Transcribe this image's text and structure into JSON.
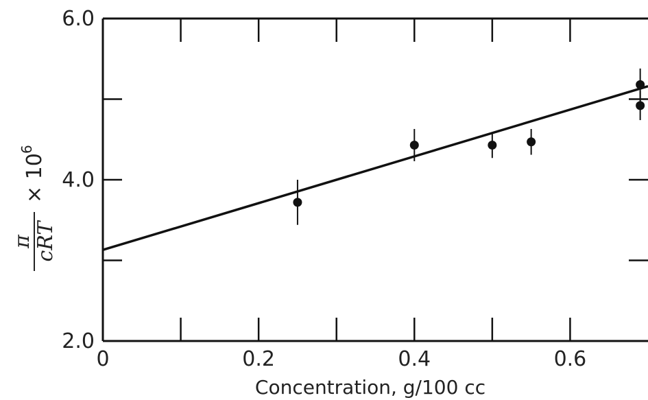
{
  "chart_data": {
    "type": "scatter",
    "xlabel": "Concentration, g/100 cc",
    "ylabel": {
      "numerator": "π",
      "denominator": "cRT",
      "times": "× 10",
      "exponent": "6"
    },
    "xlim": [
      0,
      0.7
    ],
    "ylim": [
      2.0,
      6.0
    ],
    "x_ticks": [
      {
        "value": 0,
        "label": "0"
      },
      {
        "value": 0.2,
        "label": "0.2"
      },
      {
        "value": 0.4,
        "label": "0.4"
      },
      {
        "value": 0.6,
        "label": "0.6"
      }
    ],
    "y_ticks": [
      {
        "value": 2.0,
        "label": "2.0"
      },
      {
        "value": 4.0,
        "label": "4.0"
      },
      {
        "value": 6.0,
        "label": "6.0"
      }
    ],
    "x_minor_ticks": [
      0.1,
      0.2,
      0.3,
      0.4,
      0.5,
      0.6
    ],
    "y_minor_ticks": [
      3.0,
      4.0,
      5.0
    ],
    "points": [
      {
        "x": 0.25,
        "y": 3.72,
        "err": 0.28
      },
      {
        "x": 0.4,
        "y": 4.43,
        "err": 0.2
      },
      {
        "x": 0.5,
        "y": 4.43,
        "err": 0.16
      },
      {
        "x": 0.55,
        "y": 4.47,
        "err": 0.16
      },
      {
        "x": 0.69,
        "y": 5.18,
        "err": 0.2
      },
      {
        "x": 0.69,
        "y": 4.92,
        "err": 0.18
      }
    ],
    "fit_line": {
      "x0": 0,
      "y0": 3.13,
      "x1": 0.7,
      "y1": 5.16
    },
    "grid": false
  }
}
